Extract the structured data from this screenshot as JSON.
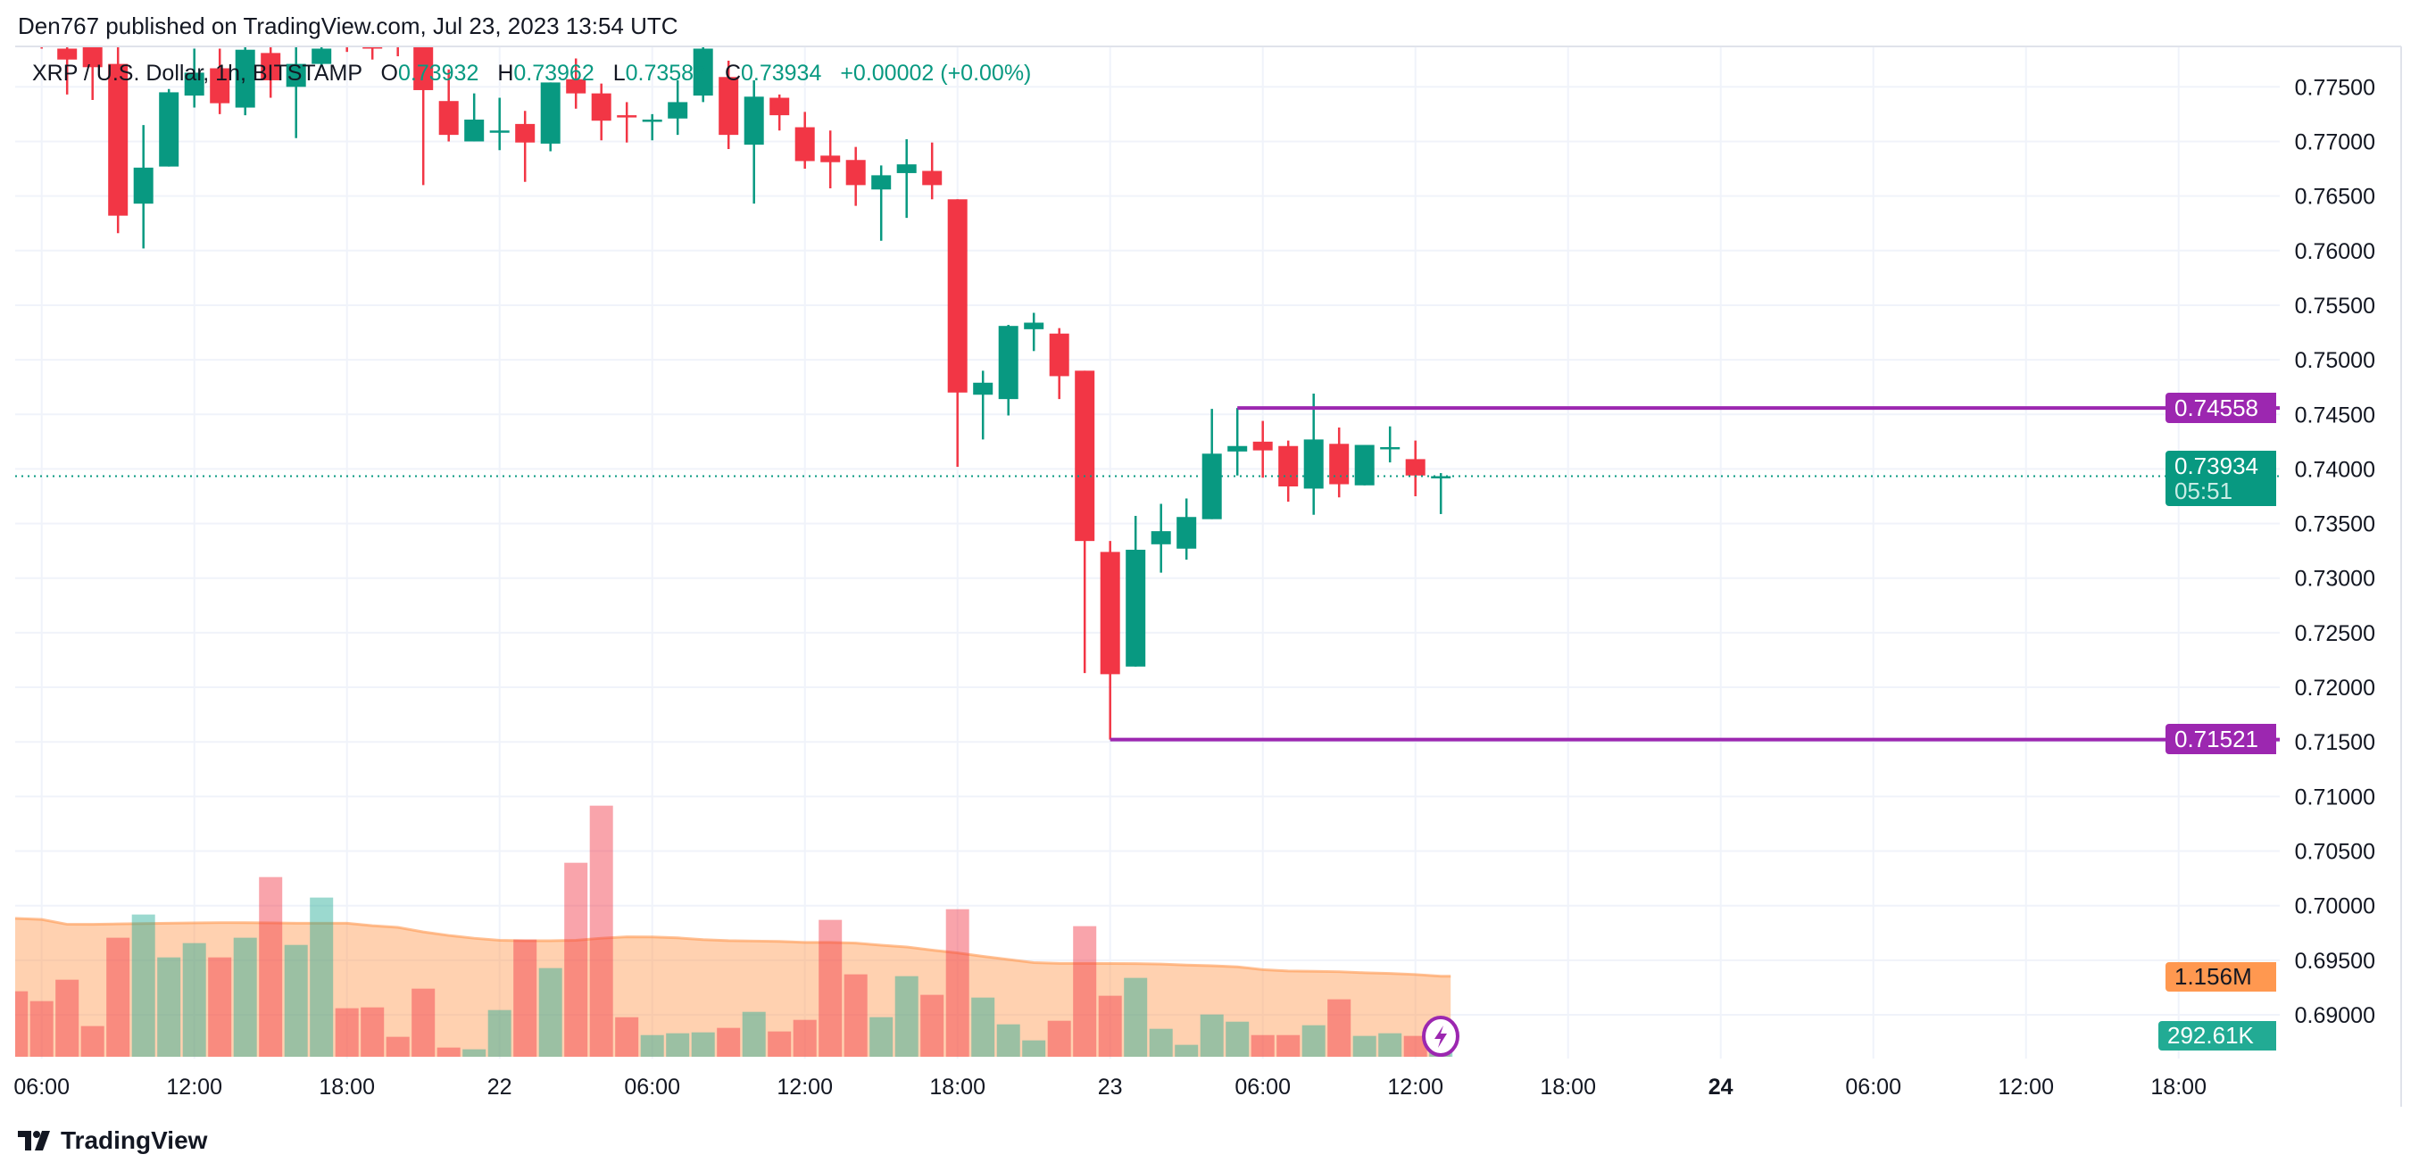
{
  "header": {
    "published": "Den767 published on TradingView.com, Jul 23, 2023 13:54 UTC"
  },
  "legend": {
    "symbol": "XRP / U.S. Dollar, 1h, BITSTAMP",
    "o_label": "O",
    "o_value": "0.73932",
    "h_label": "H",
    "h_value": "0.73962",
    "l_label": "L",
    "l_value": "0.73587",
    "c_label": "C",
    "c_value": "0.73934",
    "change": "+0.00002 (+0.00%)"
  },
  "price_tags": {
    "resistance": "0.74558",
    "current_price": "0.73934",
    "countdown": "05:51",
    "support": "0.71521",
    "volume_ma": "1.156M",
    "volume": "292.61K"
  },
  "footer": {
    "brand": "TradingView",
    "logo_icon": "tradingview-logo-icon"
  },
  "colors": {
    "up": "#089981",
    "down": "#F23645",
    "line": "#9C27B0",
    "volume_ma": "#FF9850",
    "volume_up": "#22AB94",
    "volume_down": "#F23645"
  },
  "chart_data": {
    "type": "candlestick",
    "interval": "1h",
    "ylim": [
      0.6855,
      0.7785
    ],
    "grid": true,
    "y_ticks": [
      "0.77500",
      "0.77000",
      "0.76500",
      "0.76000",
      "0.75500",
      "0.75000",
      "0.74500",
      "0.74000",
      "0.73500",
      "0.73000",
      "0.72500",
      "0.72000",
      "0.71500",
      "0.71000",
      "0.70500",
      "0.70000",
      "0.69500",
      "0.69000"
    ],
    "x_ticks": [
      {
        "label": "06:00",
        "time": "2023-07-21 06:00"
      },
      {
        "label": "12:00",
        "time": "2023-07-21 12:00"
      },
      {
        "label": "18:00",
        "time": "2023-07-21 18:00"
      },
      {
        "label": "22",
        "time": "2023-07-22 00:00",
        "bold": false
      },
      {
        "label": "06:00",
        "time": "2023-07-22 06:00"
      },
      {
        "label": "12:00",
        "time": "2023-07-22 12:00"
      },
      {
        "label": "18:00",
        "time": "2023-07-22 18:00"
      },
      {
        "label": "23",
        "time": "2023-07-23 00:00"
      },
      {
        "label": "06:00",
        "time": "2023-07-23 06:00"
      },
      {
        "label": "12:00",
        "time": "2023-07-23 12:00"
      },
      {
        "label": "18:00",
        "time": "2023-07-23 18:00"
      },
      {
        "label": "24",
        "time": "2023-07-24 00:00",
        "bold": true
      },
      {
        "label": "06:00",
        "time": "2023-07-24 06:00"
      },
      {
        "label": "12:00",
        "time": "2023-07-24 12:00"
      },
      {
        "label": "18:00",
        "time": "2023-07-24 18:00"
      }
    ],
    "candle_fields": [
      "time",
      "open",
      "high",
      "low",
      "close",
      "volume",
      "volume_ma"
    ],
    "candles": [
      [
        "2023-07-21 05:00",
        0.781,
        0.782,
        0.779,
        0.7795,
        939000,
        1984000
      ],
      [
        "2023-07-21 06:00",
        0.78,
        0.781,
        0.7785,
        0.779,
        798000,
        1970000
      ],
      [
        "2023-07-21 07:00",
        0.7785,
        0.78,
        0.7743,
        0.7775,
        1105000,
        1900000
      ],
      [
        "2023-07-21 08:00",
        0.779,
        0.78,
        0.7738,
        0.7768,
        440000,
        1899000
      ],
      [
        "2023-07-21 09:00",
        0.7771,
        0.779,
        0.7616,
        0.7632,
        1707000,
        1905000
      ],
      [
        "2023-07-21 10:00",
        0.7643,
        0.7715,
        0.7602,
        0.7676,
        2040000,
        1910000
      ],
      [
        "2023-07-21 11:00",
        0.7677,
        0.7748,
        0.7677,
        0.7745,
        1425000,
        1915000
      ],
      [
        "2023-07-21 12:00",
        0.7742,
        0.7785,
        0.7731,
        0.7763,
        1630000,
        1920000
      ],
      [
        "2023-07-21 13:00",
        0.7767,
        0.7785,
        0.7725,
        0.7735,
        1425000,
        1924000
      ],
      [
        "2023-07-21 14:00",
        0.7731,
        0.779,
        0.7724,
        0.7784,
        1707000,
        1924000
      ],
      [
        "2023-07-21 15:00",
        0.7781,
        0.779,
        0.774,
        0.7756,
        2577000,
        1920000
      ],
      [
        "2023-07-21 16:00",
        0.775,
        0.779,
        0.7703,
        0.7771,
        1604000,
        1915000
      ],
      [
        "2023-07-21 17:00",
        0.7771,
        0.7795,
        0.7769,
        0.7785,
        2283000,
        1915000
      ],
      [
        "2023-07-21 18:00",
        0.78,
        0.781,
        0.7782,
        0.779,
        696000,
        1915000
      ],
      [
        "2023-07-21 19:00",
        0.78,
        0.781,
        0.7775,
        0.7785,
        708000,
        1880000
      ],
      [
        "2023-07-21 20:00",
        0.7795,
        0.78,
        0.7778,
        0.779,
        286000,
        1856000
      ],
      [
        "2023-07-21 21:00",
        0.7795,
        0.78,
        0.766,
        0.7747,
        977000,
        1790000
      ],
      [
        "2023-07-21 22:00",
        0.7737,
        0.7766,
        0.77,
        0.7706,
        132000,
        1740000
      ],
      [
        "2023-07-21 23:00",
        0.77,
        0.7744,
        0.77,
        0.772,
        107000,
        1700000
      ],
      [
        "2023-07-22 00:00",
        0.7708,
        0.774,
        0.7692,
        0.771,
        670000,
        1670000
      ],
      [
        "2023-07-22 01:00",
        0.7716,
        0.7728,
        0.7663,
        0.7699,
        1681000,
        1664000
      ],
      [
        "2023-07-22 02:00",
        0.7698,
        0.7754,
        0.7691,
        0.7754,
        1272000,
        1664000
      ],
      [
        "2023-07-22 03:00",
        0.7757,
        0.7776,
        0.773,
        0.7744,
        2782000,
        1670000
      ],
      [
        "2023-07-22 04:00",
        0.7744,
        0.7753,
        0.7701,
        0.7719,
        3601000,
        1700000
      ],
      [
        "2023-07-22 05:00",
        0.7724,
        0.7736,
        0.7699,
        0.7722,
        567000,
        1720000
      ],
      [
        "2023-07-22 06:00",
        0.7718,
        0.7725,
        0.7701,
        0.772,
        311000,
        1718000
      ],
      [
        "2023-07-22 07:00",
        0.7721,
        0.7756,
        0.7706,
        0.7736,
        337000,
        1705000
      ],
      [
        "2023-07-22 08:00",
        0.7742,
        0.7795,
        0.7736,
        0.7785,
        350000,
        1680000
      ],
      [
        "2023-07-22 09:00",
        0.7759,
        0.7774,
        0.7693,
        0.7706,
        414000,
        1665000
      ],
      [
        "2023-07-22 10:00",
        0.7697,
        0.7756,
        0.7643,
        0.7741,
        644000,
        1660000
      ],
      [
        "2023-07-22 11:00",
        0.774,
        0.7743,
        0.771,
        0.7724,
        363000,
        1655000
      ],
      [
        "2023-07-22 12:00",
        0.7713,
        0.7727,
        0.7675,
        0.7682,
        529000,
        1640000
      ],
      [
        "2023-07-22 13:00",
        0.7687,
        0.771,
        0.7657,
        0.7681,
        1963000,
        1640000
      ],
      [
        "2023-07-22 14:00",
        0.7683,
        0.7695,
        0.7641,
        0.766,
        1182000,
        1630000
      ],
      [
        "2023-07-22 15:00",
        0.7656,
        0.7678,
        0.7609,
        0.7669,
        568000,
        1600000
      ],
      [
        "2023-07-22 16:00",
        0.7671,
        0.7702,
        0.763,
        0.7679,
        1156000,
        1575000
      ],
      [
        "2023-07-22 17:00",
        0.7673,
        0.7699,
        0.7647,
        0.766,
        888000,
        1530000
      ],
      [
        "2023-07-22 18:00",
        0.7647,
        0.7647,
        0.7402,
        0.747,
        2116000,
        1490000
      ],
      [
        "2023-07-22 19:00",
        0.7468,
        0.749,
        0.7427,
        0.7479,
        849000,
        1440000
      ],
      [
        "2023-07-22 20:00",
        0.7464,
        0.7532,
        0.7449,
        0.7531,
        465000,
        1395000
      ],
      [
        "2023-07-22 21:00",
        0.7528,
        0.7543,
        0.7508,
        0.7534,
        235000,
        1350000
      ],
      [
        "2023-07-22 22:00",
        0.7524,
        0.7529,
        0.7464,
        0.7485,
        516000,
        1340000
      ],
      [
        "2023-07-22 23:00",
        0.749,
        0.749,
        0.7213,
        0.7334,
        1873000,
        1340000
      ],
      [
        "2023-07-23 00:00",
        0.7324,
        0.7334,
        0.71521,
        0.7212,
        875000,
        1338000
      ],
      [
        "2023-07-23 01:00",
        0.7219,
        0.7357,
        0.7219,
        0.7326,
        1131000,
        1336000
      ],
      [
        "2023-07-23 02:00",
        0.7331,
        0.7368,
        0.7305,
        0.7343,
        401000,
        1330000
      ],
      [
        "2023-07-23 03:00",
        0.7327,
        0.7373,
        0.7317,
        0.7356,
        171000,
        1315000
      ],
      [
        "2023-07-23 04:00",
        0.7354,
        0.7455,
        0.7354,
        0.7414,
        606000,
        1305000
      ],
      [
        "2023-07-23 05:00",
        0.7416,
        0.74558,
        0.7394,
        0.7421,
        503000,
        1290000
      ],
      [
        "2023-07-23 06:00",
        0.7425,
        0.7444,
        0.7392,
        0.7417,
        311000,
        1250000
      ],
      [
        "2023-07-23 07:00",
        0.7421,
        0.7426,
        0.737,
        0.7384,
        311000,
        1230000
      ],
      [
        "2023-07-23 08:00",
        0.7382,
        0.7469,
        0.7358,
        0.7427,
        452000,
        1225000
      ],
      [
        "2023-07-23 09:00",
        0.7423,
        0.7438,
        0.7374,
        0.7386,
        824000,
        1220000
      ],
      [
        "2023-07-23 10:00",
        0.7385,
        0.7422,
        0.7385,
        0.7422,
        299000,
        1205000
      ],
      [
        "2023-07-23 11:00",
        0.7419,
        0.7439,
        0.7406,
        0.742,
        337000,
        1195000
      ],
      [
        "2023-07-23 12:00",
        0.7409,
        0.7426,
        0.7375,
        0.7394,
        299000,
        1180000
      ],
      [
        "2023-07-23 13:00",
        0.73932,
        0.73962,
        0.73587,
        0.73934,
        292610,
        1156000
      ]
    ],
    "horizontal_lines": [
      {
        "price": 0.74558,
        "from": "2023-07-23 05:00"
      },
      {
        "price": 0.71521,
        "from": "2023-07-23 00:00"
      }
    ],
    "current_price": 0.73934
  }
}
